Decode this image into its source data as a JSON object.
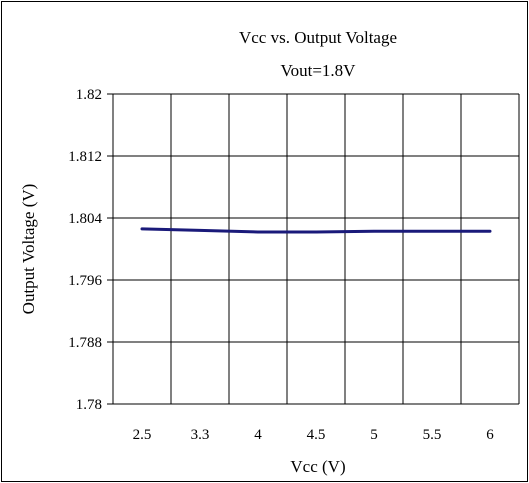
{
  "chart_data": {
    "type": "line",
    "title": "Vcc vs. Output Voltage",
    "subtitle": "Vout=1.8V",
    "xlabel": "Vcc (V)",
    "ylabel": "Output Voltage (V)",
    "categories": [
      "2.5",
      "3.3",
      "4",
      "4.5",
      "5",
      "5.5",
      "6"
    ],
    "yticks": [
      "1.82",
      "1.812",
      "1.804",
      "1.796",
      "1.788",
      "1.78"
    ],
    "ylim": [
      1.78,
      1.82
    ],
    "grid": true,
    "series": [
      {
        "color": "#1a1a7a",
        "values": [
          1.8026,
          1.8024,
          1.8022,
          1.8022,
          1.8023,
          1.8023,
          1.8023
        ]
      }
    ]
  }
}
